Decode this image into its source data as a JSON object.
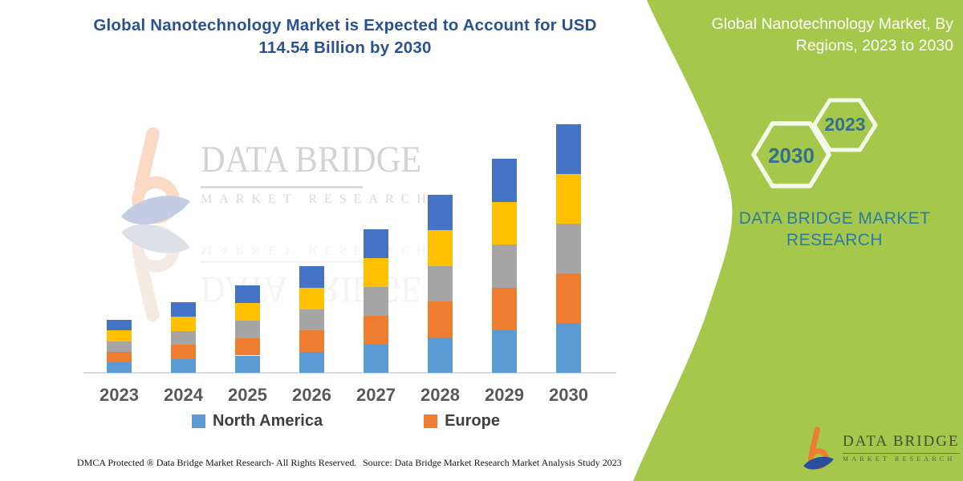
{
  "header": {
    "title_line1": "Global Nanotechnology Market is Expected to Account for USD",
    "title_line2": "114.54 Billion by 2030"
  },
  "side_panel": {
    "title": "Global Nanotechnology Market, By Regions, 2023 to 2030",
    "hex_front_label": "2030",
    "hex_back_label": "2023",
    "brand_line1": "DATA BRIDGE MARKET",
    "brand_line2": "RESEARCH",
    "panel_color": "#a5c74b",
    "accent_text_color": "#2e7ba0"
  },
  "watermark": {
    "name": "DATA BRIDGE",
    "sub": "MARKET RESEARCH"
  },
  "logo": {
    "name": "DATA BRIDGE",
    "sub": "MARKET RESEARCH"
  },
  "chart_data": {
    "type": "bar",
    "stacked": true,
    "title": "Global Nanotechnology Market is Expected to Account for USD 114.54 Billion by 2030",
    "unit": "USD billion (estimated from bar heights; y-axis not shown)",
    "categories": [
      "2023",
      "2024",
      "2025",
      "2026",
      "2027",
      "2028",
      "2029",
      "2030"
    ],
    "totals": [
      24.7,
      32.4,
      40.5,
      49.0,
      65.9,
      81.8,
      98.3,
      114.54
    ],
    "series": [
      {
        "name": "North America",
        "color": "#5b9bd5",
        "values": [
          4.9,
          6.5,
          8.1,
          9.8,
          13.2,
          16.4,
          19.7,
          22.9
        ]
      },
      {
        "name": "Europe",
        "color": "#ed7d31",
        "values": [
          4.9,
          6.5,
          8.1,
          9.8,
          13.2,
          16.4,
          19.7,
          22.9
        ]
      },
      {
        "name": "",
        "color": "#a5a5a5",
        "values": [
          4.9,
          6.5,
          8.1,
          9.8,
          13.2,
          16.4,
          19.7,
          22.9
        ]
      },
      {
        "name": "",
        "color": "#ffc000",
        "values": [
          4.9,
          6.5,
          8.1,
          9.8,
          13.2,
          16.4,
          19.7,
          22.9
        ]
      },
      {
        "name": "",
        "color": "#4472c4",
        "values": [
          4.9,
          6.5,
          8.1,
          9.8,
          13.2,
          16.4,
          19.7,
          22.9
        ]
      }
    ],
    "x_axis": {
      "labels": [
        "2023",
        "2024",
        "2025",
        "2026",
        "2027",
        "2028",
        "2029",
        "2030"
      ],
      "visible": true
    },
    "y_axis": {
      "visible": false
    },
    "gridlines": false,
    "legend_position": "bottom",
    "legend_entries": [
      "North America",
      "Europe"
    ]
  },
  "legend": [
    {
      "label": "North America",
      "color": "#5b9bd5"
    },
    {
      "label": "Europe",
      "color": "#ed7d31"
    }
  ],
  "footer": {
    "left": "DMCA Protected ® Data Bridge Market Research-  All Rights Reserved.",
    "right": "Source: Data Bridge Market Research  Market Analysis Study 2023"
  }
}
